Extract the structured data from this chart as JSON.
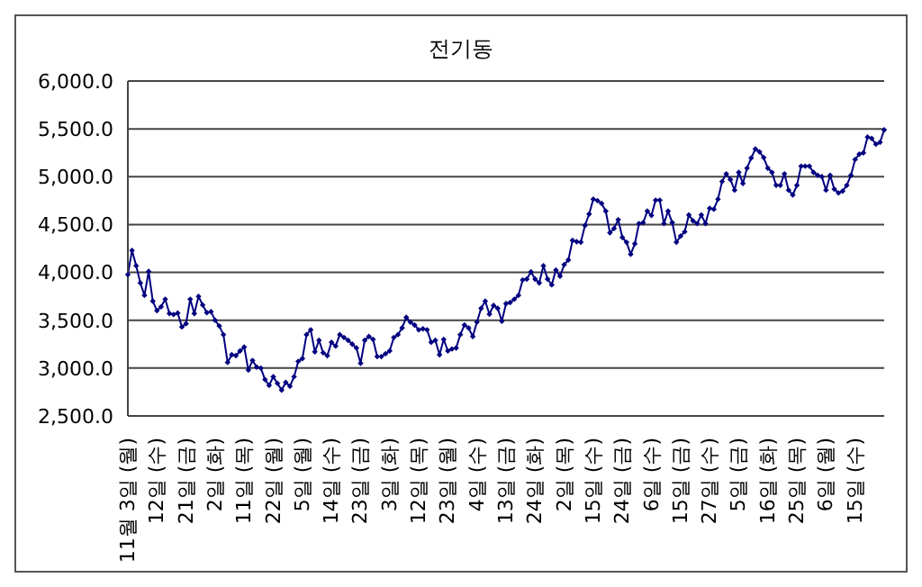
{
  "chart_data": {
    "type": "line",
    "title": "전기동",
    "categories": [
      "11월 3일 (월)",
      null,
      null,
      null,
      null,
      null,
      null,
      "12일 (수)",
      null,
      null,
      null,
      null,
      null,
      null,
      "21일 (금)",
      null,
      null,
      null,
      null,
      null,
      null,
      "2일 (화)",
      null,
      null,
      null,
      null,
      null,
      null,
      "11일 (목)",
      null,
      null,
      null,
      null,
      null,
      null,
      "22일 (월)",
      null,
      null,
      null,
      null,
      null,
      null,
      "5일 (월)",
      null,
      null,
      null,
      null,
      null,
      null,
      "14일 (수)",
      null,
      null,
      null,
      null,
      null,
      null,
      "23일 (금)",
      null,
      null,
      null,
      null,
      null,
      null,
      "3일 (화)",
      null,
      null,
      null,
      null,
      null,
      null,
      "12일 (목)",
      null,
      null,
      null,
      null,
      null,
      null,
      "23일 (월)",
      null,
      null,
      null,
      null,
      null,
      null,
      "4일 (수)",
      null,
      null,
      null,
      null,
      null,
      null,
      "13일 (금)",
      null,
      null,
      null,
      null,
      null,
      null,
      "24일 (화)",
      null,
      null,
      null,
      null,
      null,
      null,
      "2일 (목)",
      null,
      null,
      null,
      null,
      null,
      null,
      "15일 (수)",
      null,
      null,
      null,
      null,
      null,
      null,
      "24일 (금)",
      null,
      null,
      null,
      null,
      null,
      null,
      "6일 (수)",
      null,
      null,
      null,
      null,
      null,
      null,
      "15일 (금)",
      null,
      null,
      null,
      null,
      null,
      null,
      "27일 (수)",
      null,
      null,
      null,
      null,
      null,
      null,
      "5일 (금)",
      null,
      null,
      null,
      null,
      null,
      null,
      "16일 (화)",
      null,
      null,
      null,
      null,
      null,
      null,
      "25일 (목)",
      null,
      null,
      null,
      null,
      null,
      null,
      "6일 (월)",
      null,
      null,
      null,
      null,
      null,
      null,
      "15일 (수)",
      null,
      null,
      null,
      null,
      null,
      null,
      null
    ],
    "series": [
      {
        "color": "#000080",
        "values": [
          3976,
          4230,
          4070,
          3890,
          3760,
          4010,
          3700,
          3600,
          3640,
          3720,
          3570,
          3560,
          3575,
          3430,
          3465,
          3720,
          3570,
          3750,
          3660,
          3580,
          3590,
          3500,
          3440,
          3350,
          3060,
          3140,
          3130,
          3180,
          3220,
          2980,
          3080,
          3010,
          3000,
          2880,
          2820,
          2910,
          2840,
          2770,
          2850,
          2810,
          2910,
          3070,
          3100,
          3350,
          3400,
          3170,
          3290,
          3160,
          3130,
          3270,
          3230,
          3350,
          3320,
          3290,
          3250,
          3210,
          3050,
          3290,
          3330,
          3300,
          3120,
          3120,
          3150,
          3180,
          3320,
          3350,
          3420,
          3530,
          3480,
          3450,
          3400,
          3410,
          3400,
          3270,
          3290,
          3140,
          3300,
          3180,
          3200,
          3210,
          3350,
          3450,
          3420,
          3330,
          3480,
          3625,
          3700,
          3563,
          3655,
          3625,
          3490,
          3674,
          3686,
          3720,
          3760,
          3920,
          3930,
          4005,
          3930,
          3890,
          4070,
          3930,
          3870,
          4025,
          3960,
          4080,
          4130,
          4335,
          4320,
          4315,
          4490,
          4610,
          4766,
          4750,
          4720,
          4640,
          4415,
          4460,
          4550,
          4365,
          4315,
          4190,
          4300,
          4510,
          4520,
          4640,
          4595,
          4755,
          4755,
          4510,
          4640,
          4520,
          4315,
          4380,
          4425,
          4600,
          4540,
          4510,
          4600,
          4510,
          4670,
          4660,
          4765,
          4950,
          5030,
          4970,
          4860,
          5045,
          4930,
          5090,
          5195,
          5290,
          5260,
          5200,
          5090,
          5045,
          4910,
          4910,
          5030,
          4860,
          4810,
          4910,
          5110,
          5110,
          5110,
          5045,
          5015,
          5000,
          4860,
          5015,
          4870,
          4830,
          4850,
          4910,
          5015,
          5180,
          5235,
          5250,
          5415,
          5400,
          5340,
          5360,
          5490
        ]
      }
    ],
    "ylim": [
      2500,
      6000
    ],
    "yticks": [
      {
        "value": 2500,
        "label": "2,500.0"
      },
      {
        "value": 3000,
        "label": "3,000.0"
      },
      {
        "value": 3500,
        "label": "3,500.0"
      },
      {
        "value": 4000,
        "label": "4,000.0"
      },
      {
        "value": 4500,
        "label": "4,500.0"
      },
      {
        "value": 5000,
        "label": "5,000.0"
      },
      {
        "value": 5500,
        "label": "5,500.0"
      },
      {
        "value": 6000,
        "label": "6,000.0"
      }
    ],
    "grid": "y",
    "marker": "diamond",
    "line_style": "solid"
  }
}
